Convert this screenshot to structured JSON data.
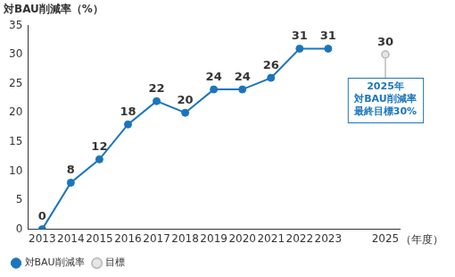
{
  "chart_data": {
    "type": "line",
    "y_label": "対BAU削減率（%）",
    "x_label": "（年度）",
    "categories": [
      "2013",
      "2014",
      "2015",
      "2016",
      "2017",
      "2018",
      "2019",
      "2020",
      "2021",
      "2022",
      "2023",
      null,
      "2025"
    ],
    "series": [
      {
        "name": "対BAU削減率",
        "color": "#1b75bc",
        "marker": "circle",
        "line_style": "solid",
        "values": [
          0,
          8,
          12,
          18,
          22,
          20,
          24,
          24,
          26,
          31,
          31,
          null,
          null
        ]
      },
      {
        "name": "目標",
        "color": "#b4b4b4",
        "marker": "circle",
        "line_style": "none",
        "values": [
          null,
          null,
          null,
          null,
          null,
          null,
          null,
          null,
          null,
          null,
          null,
          null,
          30
        ]
      }
    ],
    "annotation": [
      "2025年",
      "対BAU削減率",
      "最終目標30%"
    ],
    "ylim": [
      0,
      35
    ],
    "yticks": [
      0,
      5,
      10,
      15,
      20,
      25,
      30,
      35
    ],
    "grid": false,
    "legend": "bottom-left",
    "data_labels": true
  }
}
